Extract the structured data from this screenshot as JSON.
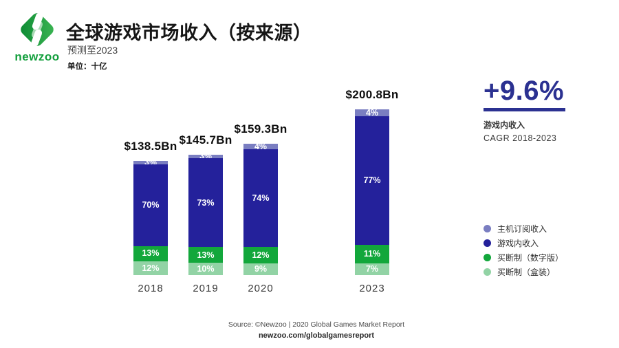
{
  "header": {
    "logo_text": "newzoo",
    "title": "全球游戏市场收入（按来源）",
    "subtitle": "预测至2023",
    "unit_label": "单位：十亿"
  },
  "chart_data": {
    "type": "bar",
    "stacked": true,
    "title": "全球游戏市场收入（按来源）",
    "unit": "十亿 (billions USD)",
    "grid": false,
    "legend_position": "right",
    "categories": [
      "2018",
      "2019",
      "2020",
      "2023"
    ],
    "totals_bn": [
      138.5,
      145.7,
      159.3,
      200.8
    ],
    "totals_label": [
      "$138.5Bn",
      "$145.7Bn",
      "$159.3Bn",
      "$200.8Bn"
    ],
    "series": [
      {
        "name": "主机订阅收入",
        "color": "#7a7ec1",
        "values_pct": [
          3,
          3,
          4,
          4
        ]
      },
      {
        "name": "游戏内收入",
        "color": "#24219b",
        "values_pct": [
          70,
          73,
          74,
          77
        ]
      },
      {
        "name": "买断制（数字版）",
        "color": "#12a73b",
        "values_pct": [
          13,
          13,
          12,
          11
        ]
      },
      {
        "name": "买断制（盒装）",
        "color": "#92d3a5",
        "values_pct": [
          12,
          10,
          9,
          7
        ]
      }
    ]
  },
  "highlight": {
    "value": "+9.6%",
    "line1": "游戏内收入",
    "line2": "CAGR 2018-2023",
    "color": "#2b3191"
  },
  "footer": {
    "source": "Source: ©Newzoo | 2020 Global Games Market Report",
    "url": "newzoo.com/globalgamesreport"
  },
  "brand": {
    "green": "#129f3c",
    "green_dark": "#0c8a33",
    "green_light": "#3cb553"
  }
}
